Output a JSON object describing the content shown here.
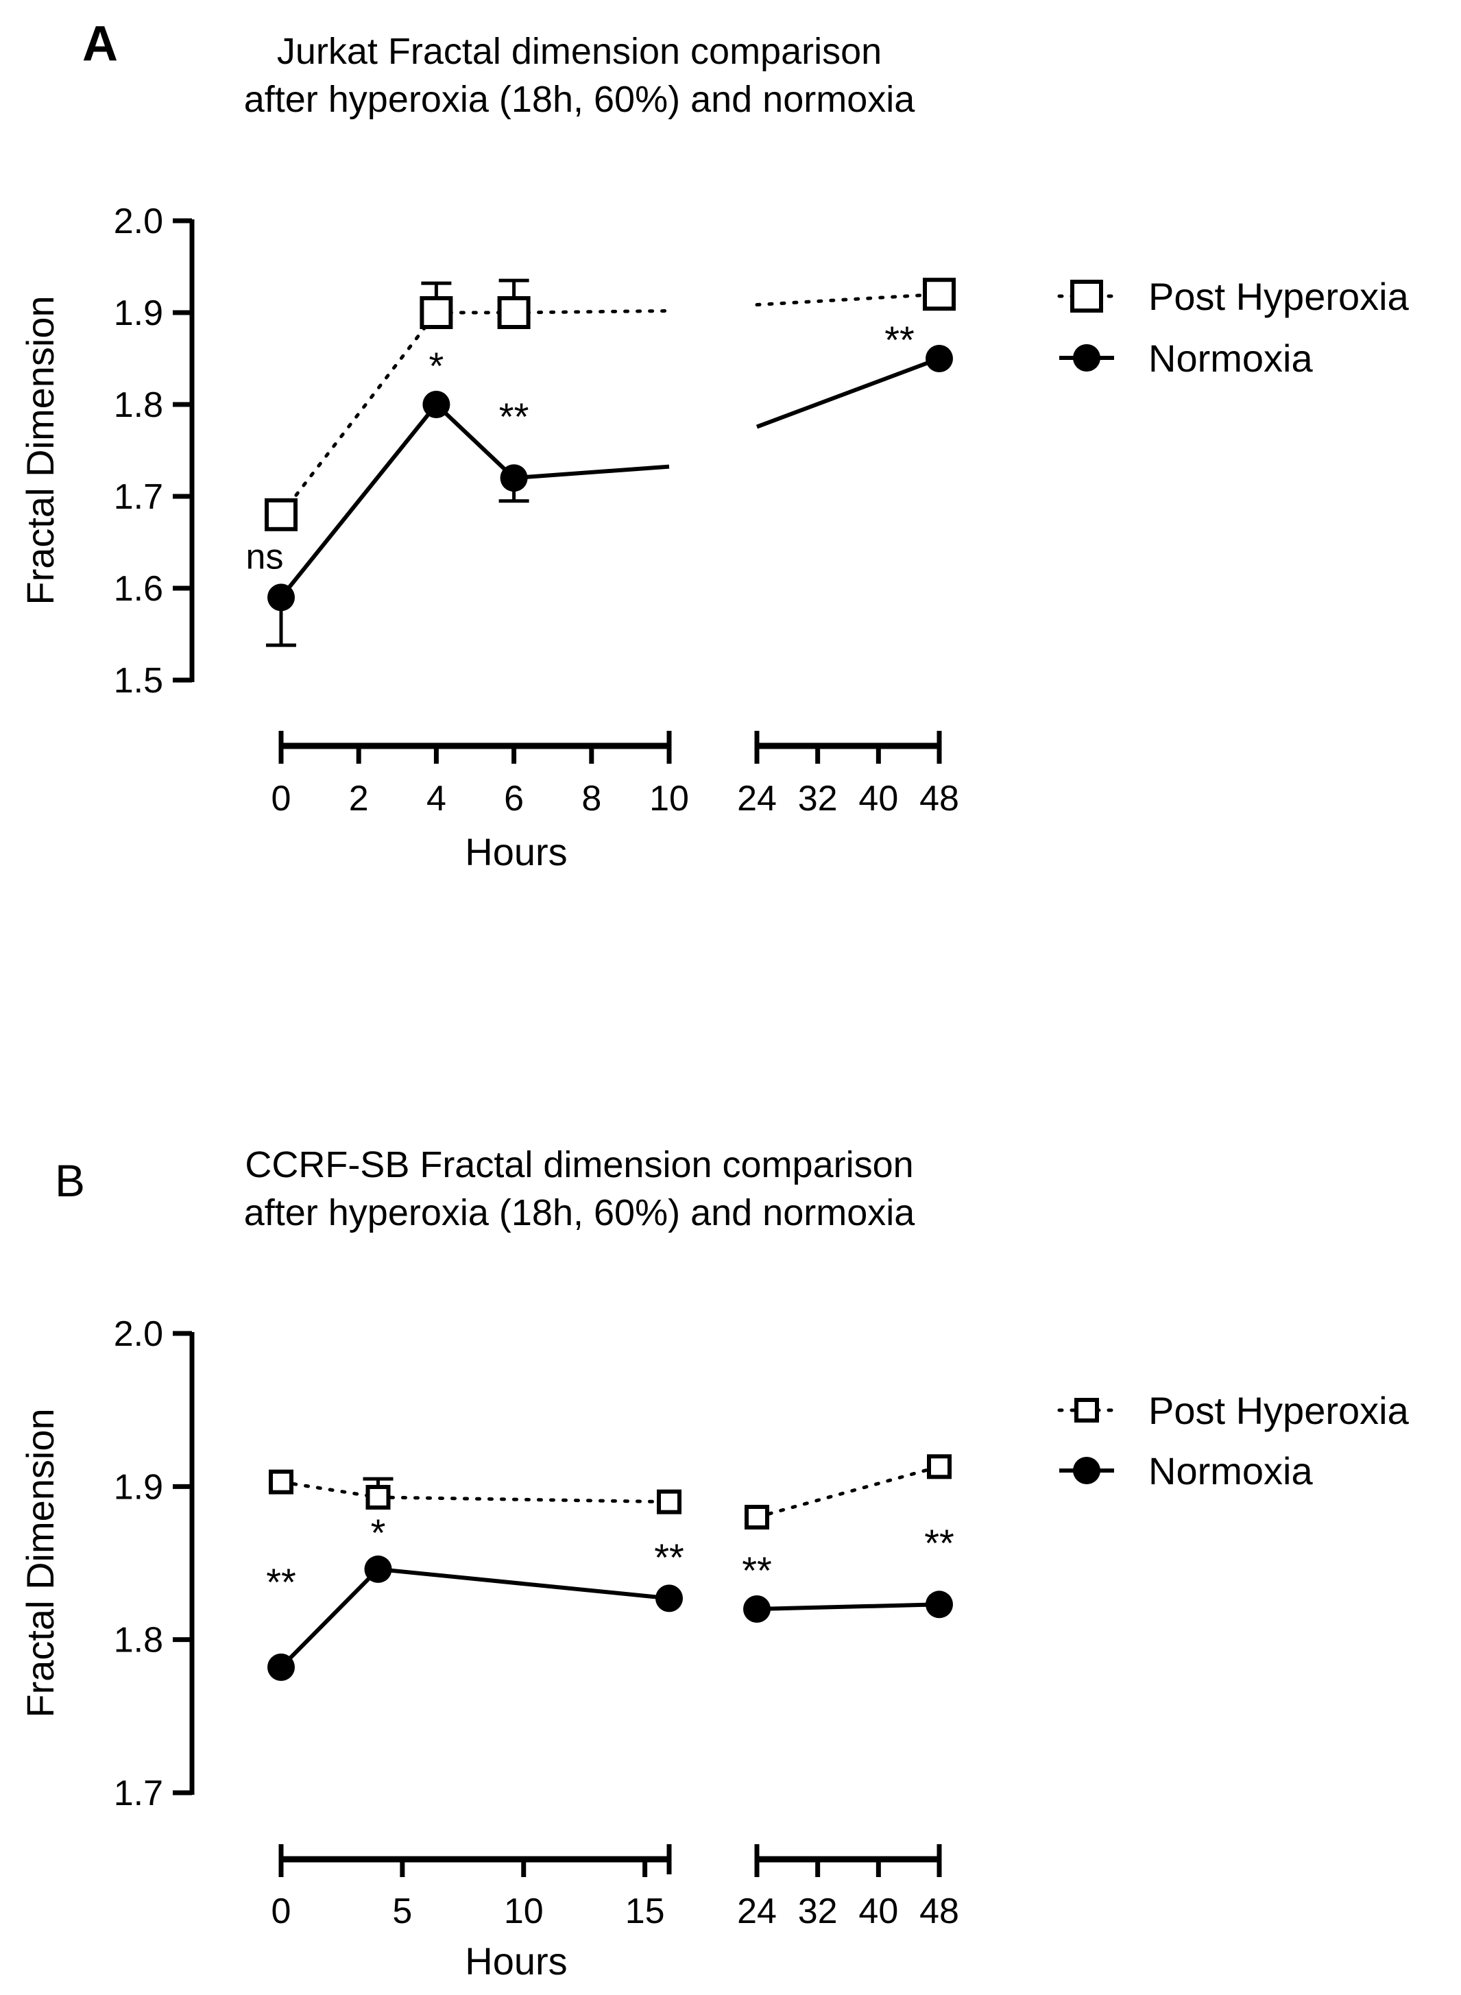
{
  "chart_data": [
    {
      "type": "line",
      "panel_label": "A",
      "title": "Jurkat Fractal dimension comparison",
      "subtitle": "after hyperoxia (18h, 60%) and normoxia",
      "xlabel": "Hours",
      "ylabel": "Fractal Dimension",
      "ylim": [
        1.5,
        2.0
      ],
      "y_ticks": [
        "1.5",
        "1.6",
        "1.7",
        "1.8",
        "1.9",
        "2.0"
      ],
      "x_segments": [
        {
          "range": [
            0,
            10
          ],
          "ticks": [
            "0",
            "2",
            "4",
            "6",
            "8",
            "10"
          ]
        },
        {
          "range": [
            24,
            48
          ],
          "ticks": [
            "24",
            "32",
            "40",
            "48"
          ]
        }
      ],
      "legend": {
        "position": "right"
      },
      "series": [
        {
          "name": "Post Hyperoxia",
          "marker": "open-square",
          "line": "dotted",
          "x": [
            0,
            4,
            6,
            48
          ],
          "y": [
            1.68,
            1.9,
            1.9,
            1.92
          ],
          "error_up": [
            0,
            0.032,
            0.035,
            0
          ]
        },
        {
          "name": "Normoxia",
          "marker": "filled-circle",
          "line": "solid",
          "x": [
            0,
            4,
            6,
            48
          ],
          "y": [
            1.59,
            1.8,
            1.72,
            1.85
          ],
          "error_down": [
            0.052,
            0,
            0.025,
            0
          ]
        }
      ],
      "annotations": [
        {
          "text": "ns",
          "x": 0
        },
        {
          "text": "*",
          "x": 4
        },
        {
          "text": "**",
          "x": 6
        },
        {
          "text": "**",
          "x": 48
        }
      ]
    },
    {
      "type": "line",
      "panel_label": "B",
      "title": "CCRF-SB Fractal dimension comparison",
      "subtitle": "after hyperoxia (18h, 60%) and normoxia",
      "xlabel": "Hours",
      "ylabel": "Fractal Dimension",
      "ylim": [
        1.7,
        2.0
      ],
      "y_ticks": [
        "1.7",
        "1.8",
        "1.9",
        "2.0"
      ],
      "x_segments": [
        {
          "range": [
            0,
            16
          ],
          "ticks": [
            "0",
            "5",
            "10",
            "15"
          ]
        },
        {
          "range": [
            24,
            48
          ],
          "ticks": [
            "24",
            "32",
            "40",
            "48"
          ]
        }
      ],
      "legend": {
        "position": "right"
      },
      "series": [
        {
          "name": "Post Hyperoxia",
          "marker": "open-square",
          "line": "dotted",
          "x": [
            0,
            4,
            16,
            24,
            48
          ],
          "y": [
            1.903,
            1.893,
            1.89,
            1.88,
            1.913
          ],
          "error_up": [
            0,
            0.012,
            0,
            0,
            0
          ]
        },
        {
          "name": "Normoxia",
          "marker": "filled-circle",
          "line": "solid",
          "x": [
            0,
            4,
            16,
            24,
            48
          ],
          "y": [
            1.782,
            1.846,
            1.827,
            1.82,
            1.823
          ],
          "error_down": [
            0,
            0,
            0,
            0,
            0
          ]
        }
      ],
      "annotations": [
        {
          "text": "**",
          "x": 0
        },
        {
          "text": "*",
          "x": 4
        },
        {
          "text": "**",
          "x": 16
        },
        {
          "text": "**",
          "x": 24
        },
        {
          "text": "**",
          "x": 48
        }
      ]
    }
  ]
}
